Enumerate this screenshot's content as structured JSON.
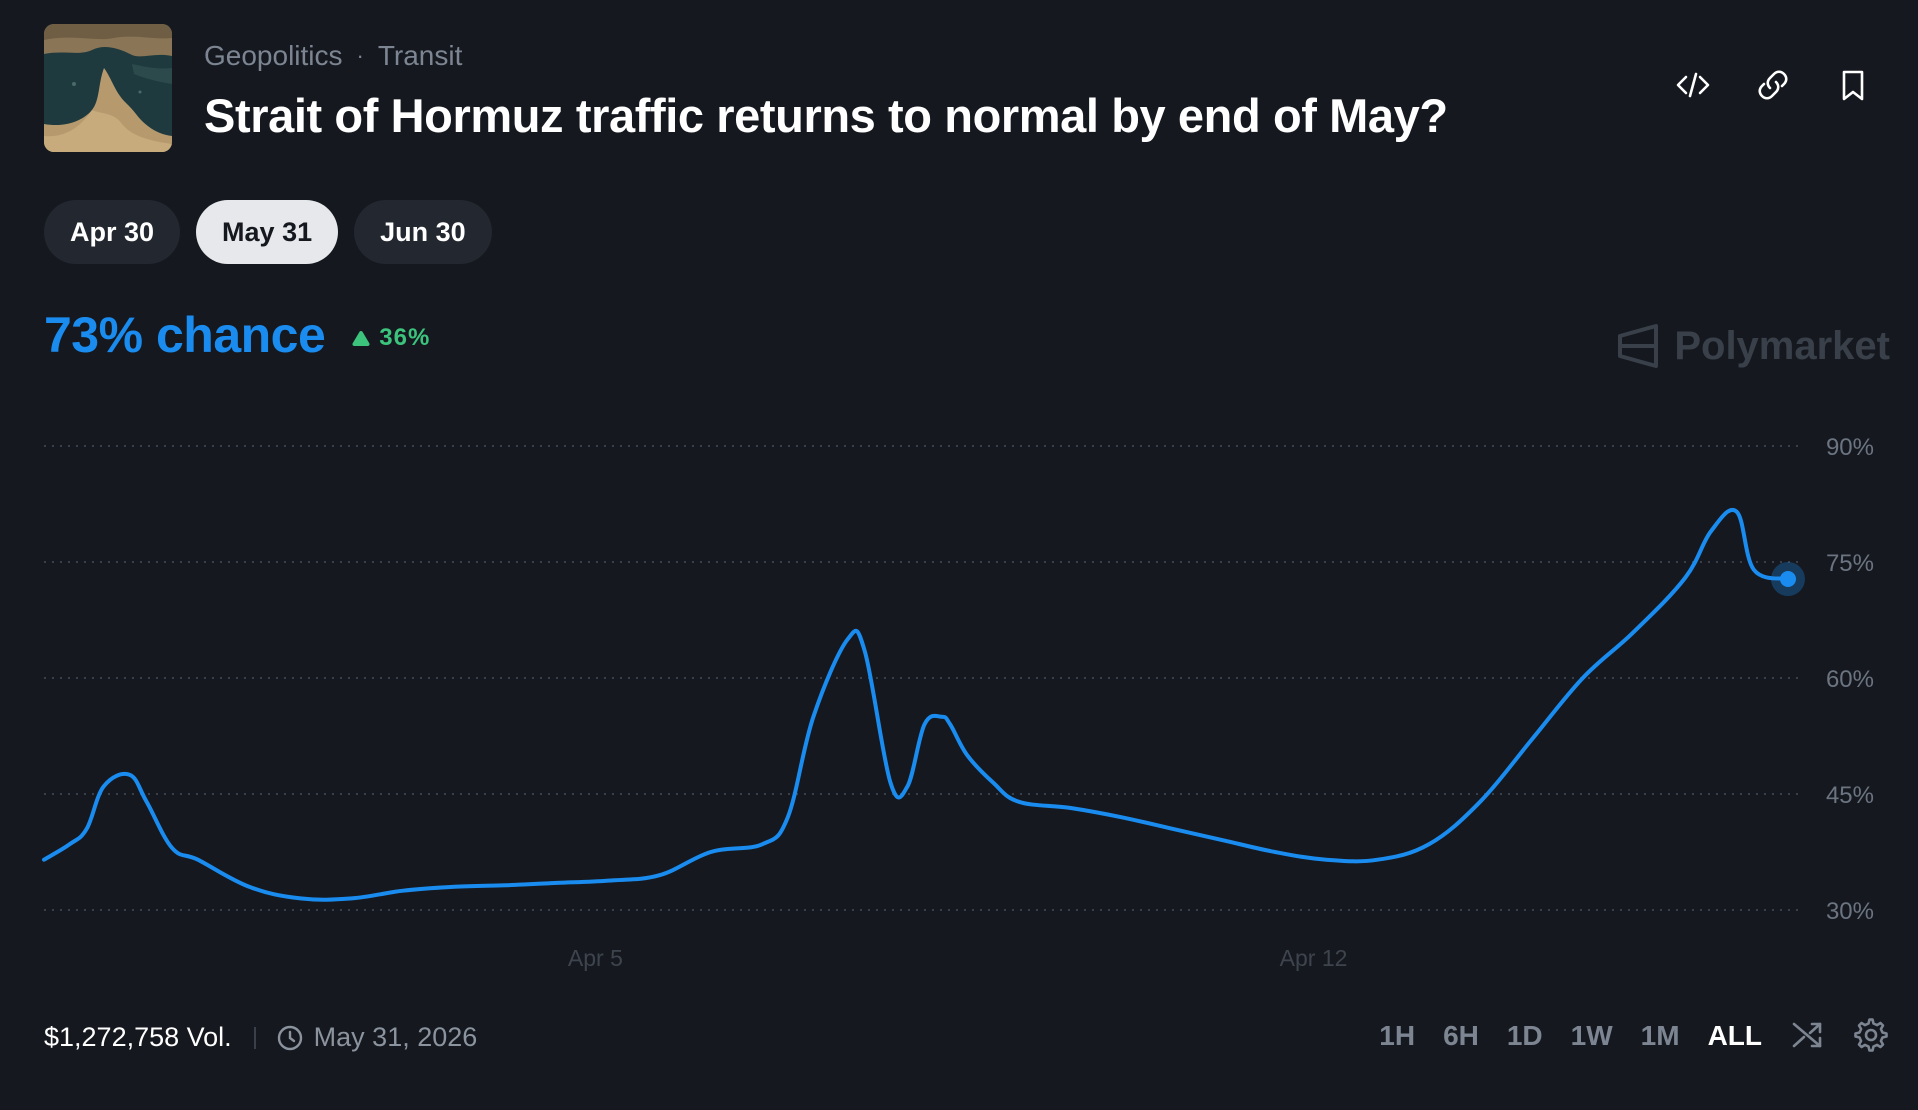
{
  "header": {
    "breadcrumbs": [
      "Geopolitics",
      "Transit"
    ],
    "breadcrumb_separator": "·",
    "title": "Strait of Hormuz traffic returns to normal by end of May?",
    "actions": [
      "embed-code-icon",
      "link-icon",
      "bookmark-icon"
    ]
  },
  "date_tabs": [
    {
      "label": "Apr 30",
      "active": false
    },
    {
      "label": "May 31",
      "active": true
    },
    {
      "label": "Jun 30",
      "active": false
    }
  ],
  "summary": {
    "chance": "73% chance",
    "delta": "36%",
    "delta_direction": "up",
    "accent_color": "#1a8cf0",
    "delta_color": "#3cc47c"
  },
  "watermark": "Polymarket",
  "chart_data": {
    "type": "line",
    "title": "",
    "xlabel": "",
    "ylabel": "",
    "x_ticks": [
      "Apr 5",
      "Apr 12"
    ],
    "y_ticks": [
      "90%",
      "75%",
      "60%",
      "45%",
      "30%"
    ],
    "ylim": [
      30,
      90
    ],
    "grid": true,
    "grid_style": "dotted",
    "line_color": "#1a8cf0",
    "series": [
      {
        "name": "",
        "x": [
          "2026-03-31 00:00",
          "2026-03-31 06:00",
          "2026-03-31 10:00",
          "2026-03-31 14:00",
          "2026-03-31 20:00",
          "2026-04-01 00:00",
          "2026-04-01 06:00",
          "2026-04-01 12:00",
          "2026-04-02 00:00",
          "2026-04-02 12:00",
          "2026-04-03 00:00",
          "2026-04-03 12:00",
          "2026-04-04 00:00",
          "2026-04-04 12:00",
          "2026-04-05 00:00",
          "2026-04-05 12:00",
          "2026-04-06 00:00",
          "2026-04-06 12:00",
          "2026-04-07 00:00",
          "2026-04-07 06:00",
          "2026-04-07 12:00",
          "2026-04-07 20:00",
          "2026-04-08 00:00",
          "2026-04-08 06:00",
          "2026-04-08 10:00",
          "2026-04-08 14:00",
          "2026-04-08 18:00",
          "2026-04-08 20:00",
          "2026-04-09 00:00",
          "2026-04-09 06:00",
          "2026-04-09 12:00",
          "2026-04-10 00:00",
          "2026-04-10 12:00",
          "2026-04-11 00:00",
          "2026-04-11 12:00",
          "2026-04-12 00:00",
          "2026-04-12 12:00",
          "2026-04-13 00:00",
          "2026-04-13 12:00",
          "2026-04-14 00:00",
          "2026-04-14 12:00",
          "2026-04-15 00:00",
          "2026-04-15 12:00",
          "2026-04-16 00:00",
          "2026-04-16 06:00",
          "2026-04-16 12:00",
          "2026-04-16 16:00",
          "2026-04-17 00:00"
        ],
        "values": [
          36.5,
          38.5,
          40.5,
          46.0,
          47.5,
          44.0,
          38.0,
          36.5,
          33.0,
          31.5,
          31.5,
          32.5,
          33.0,
          33.2,
          33.5,
          33.8,
          34.5,
          37.5,
          38.5,
          42.0,
          55.0,
          65.0,
          63.5,
          46.5,
          46.0,
          54.0,
          55.0,
          54.0,
          50.0,
          46.5,
          44.0,
          43.2,
          42.0,
          40.5,
          39.0,
          37.5,
          36.5,
          36.5,
          38.5,
          44.0,
          52.0,
          60.0,
          66.0,
          73.0,
          79.0,
          81.5,
          74.0,
          72.8
        ]
      }
    ]
  },
  "footer": {
    "volume": "$1,272,758 Vol.",
    "end_date": "May 31, 2026",
    "ranges": [
      {
        "label": "1H",
        "active": false
      },
      {
        "label": "6H",
        "active": false
      },
      {
        "label": "1D",
        "active": false
      },
      {
        "label": "1W",
        "active": false
      },
      {
        "label": "1M",
        "active": false
      },
      {
        "label": "ALL",
        "active": true
      }
    ],
    "icons": [
      "shuffle-icon",
      "settings-gear-icon"
    ]
  }
}
